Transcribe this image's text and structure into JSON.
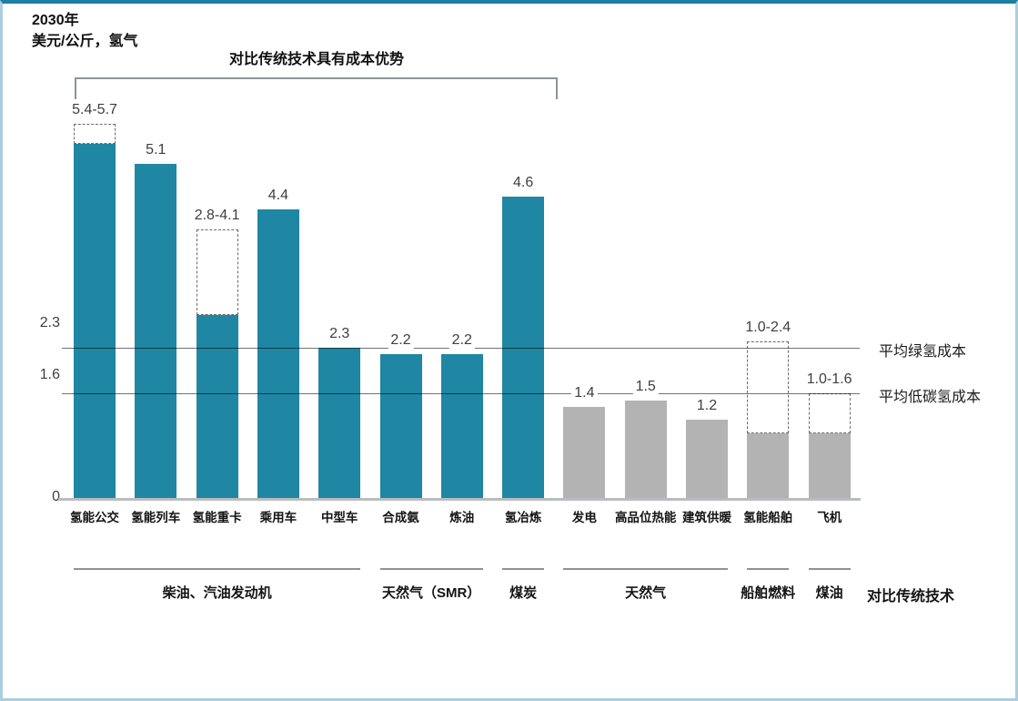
{
  "card": {
    "title_line1": "2030年",
    "title_line2": "美元/公斤，氢气"
  },
  "colors": {
    "bar_teal": "#1f86a3",
    "bar_gray": "#b3b3b3",
    "accent_top_border": "#1f7ea1",
    "card_border": "#a9cfe0"
  },
  "chart_data": {
    "type": "bar",
    "title": "2030年",
    "subtitle": "美元/公斤，氢气",
    "ylabel": "美元/公斤，氢气",
    "ylim": [
      0,
      6.5
    ],
    "grid": false,
    "y_ticks": [
      {
        "label": "2.3",
        "value": 2.3
      },
      {
        "label": "1.6",
        "value": 1.6
      },
      {
        "label": "0",
        "value": 0
      }
    ],
    "bars": [
      {
        "category": "氢能公交",
        "value_label": "5.4-5.7",
        "value": 5.4,
        "range_max": 5.7,
        "color": "teal"
      },
      {
        "category": "氢能列车",
        "value_label": "5.1",
        "value": 5.1,
        "range_max": null,
        "color": "teal"
      },
      {
        "category": "氢能重卡",
        "value_label": "2.8-4.1",
        "value": 2.8,
        "range_max": 4.1,
        "color": "teal"
      },
      {
        "category": "乘用车",
        "value_label": "4.4",
        "value": 4.4,
        "range_max": null,
        "color": "teal"
      },
      {
        "category": "中型车",
        "value_label": "2.3",
        "value": 2.3,
        "range_max": null,
        "color": "teal"
      },
      {
        "category": "合成氨",
        "value_label": "2.2",
        "value": 2.2,
        "range_max": null,
        "color": "teal"
      },
      {
        "category": "炼油",
        "value_label": "2.2",
        "value": 2.2,
        "range_max": null,
        "color": "teal"
      },
      {
        "category": "氢冶炼",
        "value_label": "4.6",
        "value": 4.6,
        "range_max": null,
        "color": "teal"
      },
      {
        "category": "发电",
        "value_label": "1.4",
        "value": 1.4,
        "range_max": null,
        "color": "gray"
      },
      {
        "category": "高品位热能",
        "value_label": "1.5",
        "value": 1.5,
        "range_max": null,
        "color": "gray"
      },
      {
        "category": "建筑供暖",
        "value_label": "1.2",
        "value": 1.2,
        "range_max": null,
        "color": "gray"
      },
      {
        "category": "氢能船舶",
        "value_label": "1.0-2.4",
        "value": 1.0,
        "range_max": 2.4,
        "color": "gray"
      },
      {
        "category": "飞机",
        "value_label": "1.0-1.6",
        "value": 1.0,
        "range_max": 1.6,
        "color": "gray"
      }
    ],
    "reference_lines": [
      {
        "value": 2.3,
        "label": "平均绿氢成本"
      },
      {
        "value": 1.6,
        "label": "平均低碳氢成本"
      }
    ],
    "bracket": {
      "label": "对比传统技术具有成本优势",
      "covers_bar_indices": [
        0,
        7
      ]
    },
    "comparison_groups": [
      {
        "label": "柴油、汽油发动机",
        "start_index": 0,
        "end_index": 4
      },
      {
        "label": "天然气（SMR）",
        "start_index": 5,
        "end_index": 6
      },
      {
        "label": "煤炭",
        "start_index": 7,
        "end_index": 7
      },
      {
        "label": "天然气",
        "start_index": 8,
        "end_index": 10
      },
      {
        "label": "船舶燃料",
        "start_index": 11,
        "end_index": 11
      },
      {
        "label": "煤油",
        "start_index": 12,
        "end_index": 12
      }
    ],
    "comparison_row_label": "对比传统技术"
  }
}
